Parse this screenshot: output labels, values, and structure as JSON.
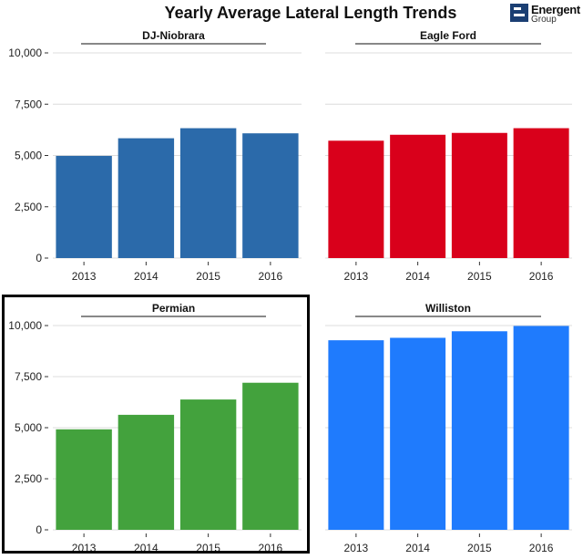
{
  "title": "Yearly Average Lateral Length Trends",
  "logo": {
    "name": "Energent",
    "sub": "Group"
  },
  "colors": {
    "dj": "#2b6aaa",
    "eagle": "#d9001b",
    "permian": "#43a23d",
    "williston": "#1f7bfd",
    "grid": "#dcdcdc"
  },
  "chart_data": [
    {
      "type": "bar",
      "title": "DJ-Niobrara",
      "categories": [
        "2013",
        "2014",
        "2015",
        "2016"
      ],
      "values": [
        4980,
        5840,
        6330,
        6080
      ],
      "ylim": [
        0,
        10000
      ],
      "yticks": [
        "0",
        "2,500",
        "5,000",
        "7,500",
        "10,000"
      ],
      "xlabel": "",
      "ylabel": ""
    },
    {
      "type": "bar",
      "title": "Eagle Ford",
      "categories": [
        "2013",
        "2014",
        "2015",
        "2016"
      ],
      "values": [
        5720,
        6010,
        6100,
        6330
      ],
      "ylim": [
        0,
        10000
      ],
      "xlabel": "",
      "ylabel": ""
    },
    {
      "type": "bar",
      "title": "Permian",
      "categories": [
        "2013",
        "2014",
        "2015",
        "2016"
      ],
      "values": [
        4920,
        5630,
        6380,
        7200
      ],
      "ylim": [
        0,
        10000
      ],
      "yticks": [
        "0",
        "2,500",
        "5,000",
        "7,500",
        "10,000"
      ],
      "xlabel": "",
      "ylabel": ""
    },
    {
      "type": "bar",
      "title": "Williston",
      "categories": [
        "2013",
        "2014",
        "2015",
        "2016"
      ],
      "values": [
        9280,
        9400,
        9720,
        9980
      ],
      "ylim": [
        0,
        10000
      ],
      "xlabel": "",
      "ylabel": ""
    }
  ]
}
